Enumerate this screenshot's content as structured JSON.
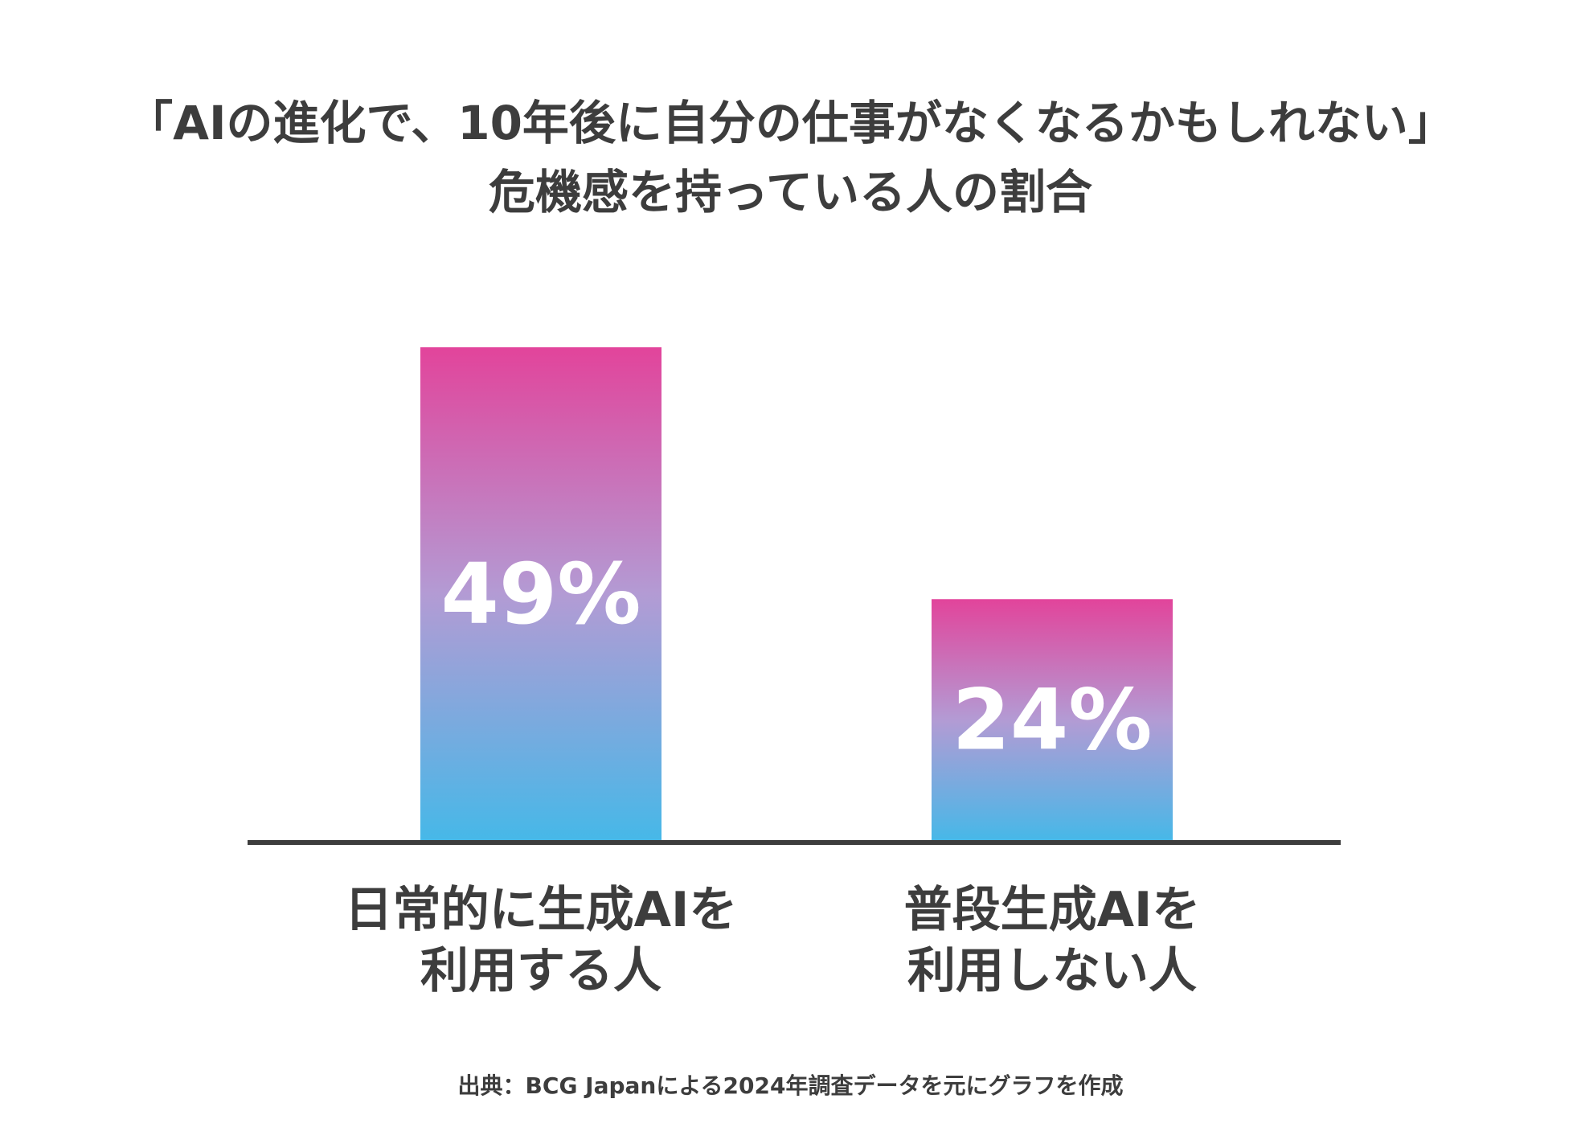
{
  "chart_data": {
    "type": "bar",
    "title_lines": [
      "「AIの進化で、10年後に自分の仕事がなくなるかもしれない」",
      "危機感を持っている人の割合"
    ],
    "categories": [
      {
        "lines": [
          "日常的に生成AIを",
          "利用する人"
        ]
      },
      {
        "lines": [
          "普段生成AIを",
          "利用しない人"
        ]
      }
    ],
    "values": [
      49,
      24
    ],
    "value_labels": [
      "49%",
      "24%"
    ],
    "unit": "%",
    "ylim": [
      0,
      49
    ],
    "grid": false,
    "legend": "none",
    "axis_visible": false,
    "xlabel": "",
    "ylabel": "",
    "source": "出典：BCG Japanによる2024年調査データを元にグラフを作成"
  },
  "colors": {
    "bar_gradient_top": "#e2449b",
    "bar_gradient_mid": "#b39bd4",
    "bar_gradient_bottom": "#46b8e8",
    "baseline": "#3d3d3d",
    "text": "#3d3d3d",
    "value_text": "#ffffff"
  }
}
